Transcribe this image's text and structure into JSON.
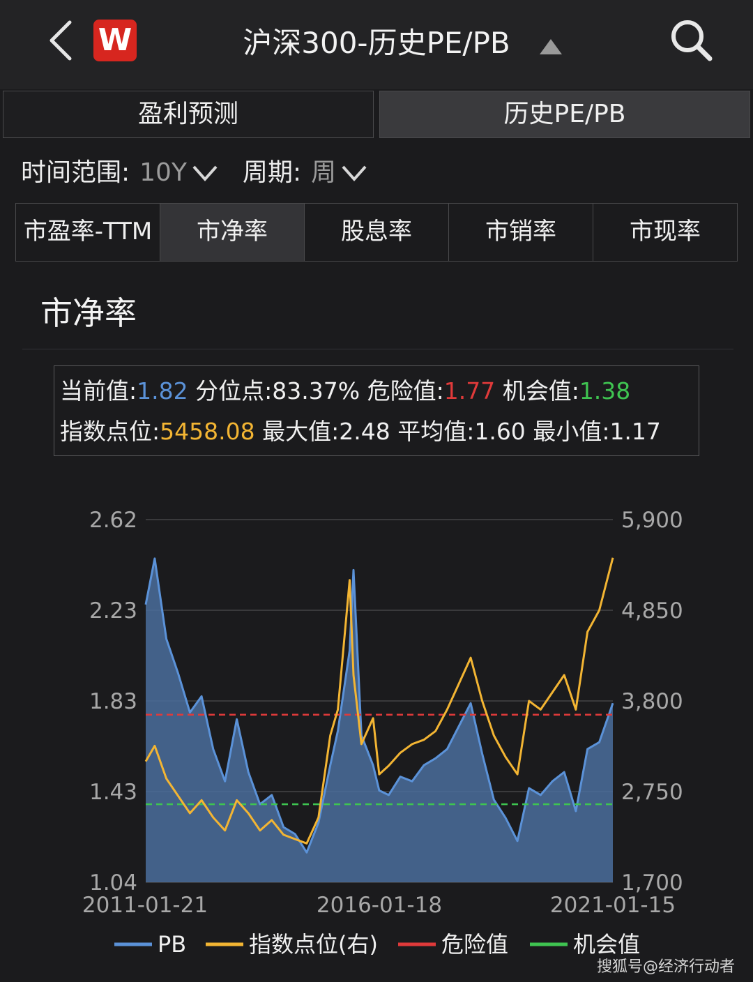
{
  "header": {
    "title": "沪深300-历史PE/PB",
    "logo_text": "W"
  },
  "tabs": [
    {
      "label": "盈利预测",
      "active": false
    },
    {
      "label": "历史PE/PB",
      "active": true
    }
  ],
  "filters": {
    "range_label": "时间范围:",
    "range_value": "10Y",
    "period_label": "周期:",
    "period_value": "周"
  },
  "subtabs": [
    {
      "label": "市盈率-TTM",
      "active": false
    },
    {
      "label": "市净率",
      "active": true
    },
    {
      "label": "股息率",
      "active": false
    },
    {
      "label": "市销率",
      "active": false
    },
    {
      "label": "市现率",
      "active": false
    }
  ],
  "section_title": "市净率",
  "stats": {
    "current_label": "当前值:",
    "current_value": "1.82",
    "percentile_label": "分位点:",
    "percentile_value": "83.37%",
    "danger_label": "危险值:",
    "danger_value": "1.77",
    "chance_label": "机会值:",
    "chance_value": "1.38",
    "index_label": "指数点位:",
    "index_value": "5458.08",
    "max_label": "最大值:",
    "max_value": "2.48",
    "avg_label": "平均值:",
    "avg_value": "1.60",
    "min_label": "最小值:",
    "min_value": "1.17"
  },
  "colors": {
    "pb": "#5b92d8",
    "index": "#f3b533",
    "danger": "#e03a3a",
    "chance": "#3fc451"
  },
  "chart_data": {
    "type": "line",
    "left_axis": {
      "ticks": [
        "2.62",
        "2.23",
        "1.83",
        "1.43",
        "1.04"
      ],
      "range": [
        1.04,
        2.62
      ]
    },
    "right_axis": {
      "ticks": [
        "5,900",
        "4,850",
        "3,800",
        "2,750",
        "1,700"
      ],
      "range": [
        1700,
        5900
      ]
    },
    "x_ticks": [
      "2011-01-21",
      "2016-01-18",
      "2021-01-15"
    ],
    "x_range": [
      "2011-01-21",
      "2021-01-15"
    ],
    "series": [
      {
        "name": "PB",
        "axis": "left",
        "fill": true,
        "x": [
          "2011-01-21",
          "2011-04-01",
          "2011-07-01",
          "2011-10-01",
          "2012-01-01",
          "2012-04-01",
          "2012-07-01",
          "2012-10-01",
          "2013-01-01",
          "2013-04-01",
          "2013-07-01",
          "2013-10-01",
          "2014-01-01",
          "2014-04-01",
          "2014-07-01",
          "2014-10-01",
          "2015-01-01",
          "2015-03-01",
          "2015-06-01",
          "2015-07-01",
          "2015-09-01",
          "2015-12-01",
          "2016-01-18",
          "2016-04-01",
          "2016-07-01",
          "2016-10-01",
          "2017-01-01",
          "2017-04-01",
          "2017-07-01",
          "2017-10-01",
          "2018-01-01",
          "2018-04-01",
          "2018-07-01",
          "2018-10-01",
          "2019-01-01",
          "2019-04-01",
          "2019-07-01",
          "2019-10-01",
          "2020-01-01",
          "2020-04-01",
          "2020-07-01",
          "2020-10-01",
          "2021-01-15"
        ],
        "values": [
          2.25,
          2.45,
          2.1,
          1.95,
          1.78,
          1.85,
          1.62,
          1.48,
          1.75,
          1.52,
          1.38,
          1.42,
          1.28,
          1.25,
          1.17,
          1.3,
          1.55,
          1.7,
          2.05,
          2.4,
          1.68,
          1.55,
          1.44,
          1.42,
          1.5,
          1.48,
          1.55,
          1.58,
          1.62,
          1.72,
          1.82,
          1.6,
          1.4,
          1.32,
          1.22,
          1.45,
          1.42,
          1.48,
          1.52,
          1.35,
          1.62,
          1.65,
          1.82
        ]
      },
      {
        "name": "指数点位(右)",
        "axis": "right",
        "x": [
          "2011-01-21",
          "2011-04-01",
          "2011-07-01",
          "2011-10-01",
          "2012-01-01",
          "2012-04-01",
          "2012-07-01",
          "2012-10-01",
          "2013-01-01",
          "2013-04-01",
          "2013-07-01",
          "2013-10-01",
          "2014-01-01",
          "2014-04-01",
          "2014-07-01",
          "2014-10-01",
          "2015-01-01",
          "2015-03-01",
          "2015-06-01",
          "2015-07-01",
          "2015-09-01",
          "2015-12-01",
          "2016-01-18",
          "2016-04-01",
          "2016-07-01",
          "2016-10-01",
          "2017-01-01",
          "2017-04-01",
          "2017-07-01",
          "2017-10-01",
          "2018-01-01",
          "2018-04-01",
          "2018-07-01",
          "2018-10-01",
          "2019-01-01",
          "2019-04-01",
          "2019-07-01",
          "2019-10-01",
          "2020-01-01",
          "2020-04-01",
          "2020-07-01",
          "2020-10-01",
          "2021-01-15"
        ],
        "values": [
          3100,
          3280,
          2900,
          2700,
          2500,
          2650,
          2450,
          2300,
          2650,
          2500,
          2300,
          2420,
          2250,
          2200,
          2150,
          2450,
          3400,
          3700,
          5200,
          4100,
          3300,
          3600,
          2950,
          3050,
          3200,
          3300,
          3350,
          3450,
          3700,
          4000,
          4300,
          3800,
          3400,
          3150,
          2950,
          3800,
          3700,
          3900,
          4100,
          3700,
          4600,
          4850,
          5458
        ]
      }
    ],
    "reference_lines": [
      {
        "name": "危险值",
        "value": 1.77,
        "axis": "left",
        "style": "dashed"
      },
      {
        "name": "机会值",
        "value": 1.38,
        "axis": "left",
        "style": "dashed"
      }
    ],
    "legend": [
      "PB",
      "指数点位(右)",
      "危险值",
      "机会值"
    ],
    "legend_position": "bottom"
  },
  "watermark": "搜狐号@经济行动者"
}
